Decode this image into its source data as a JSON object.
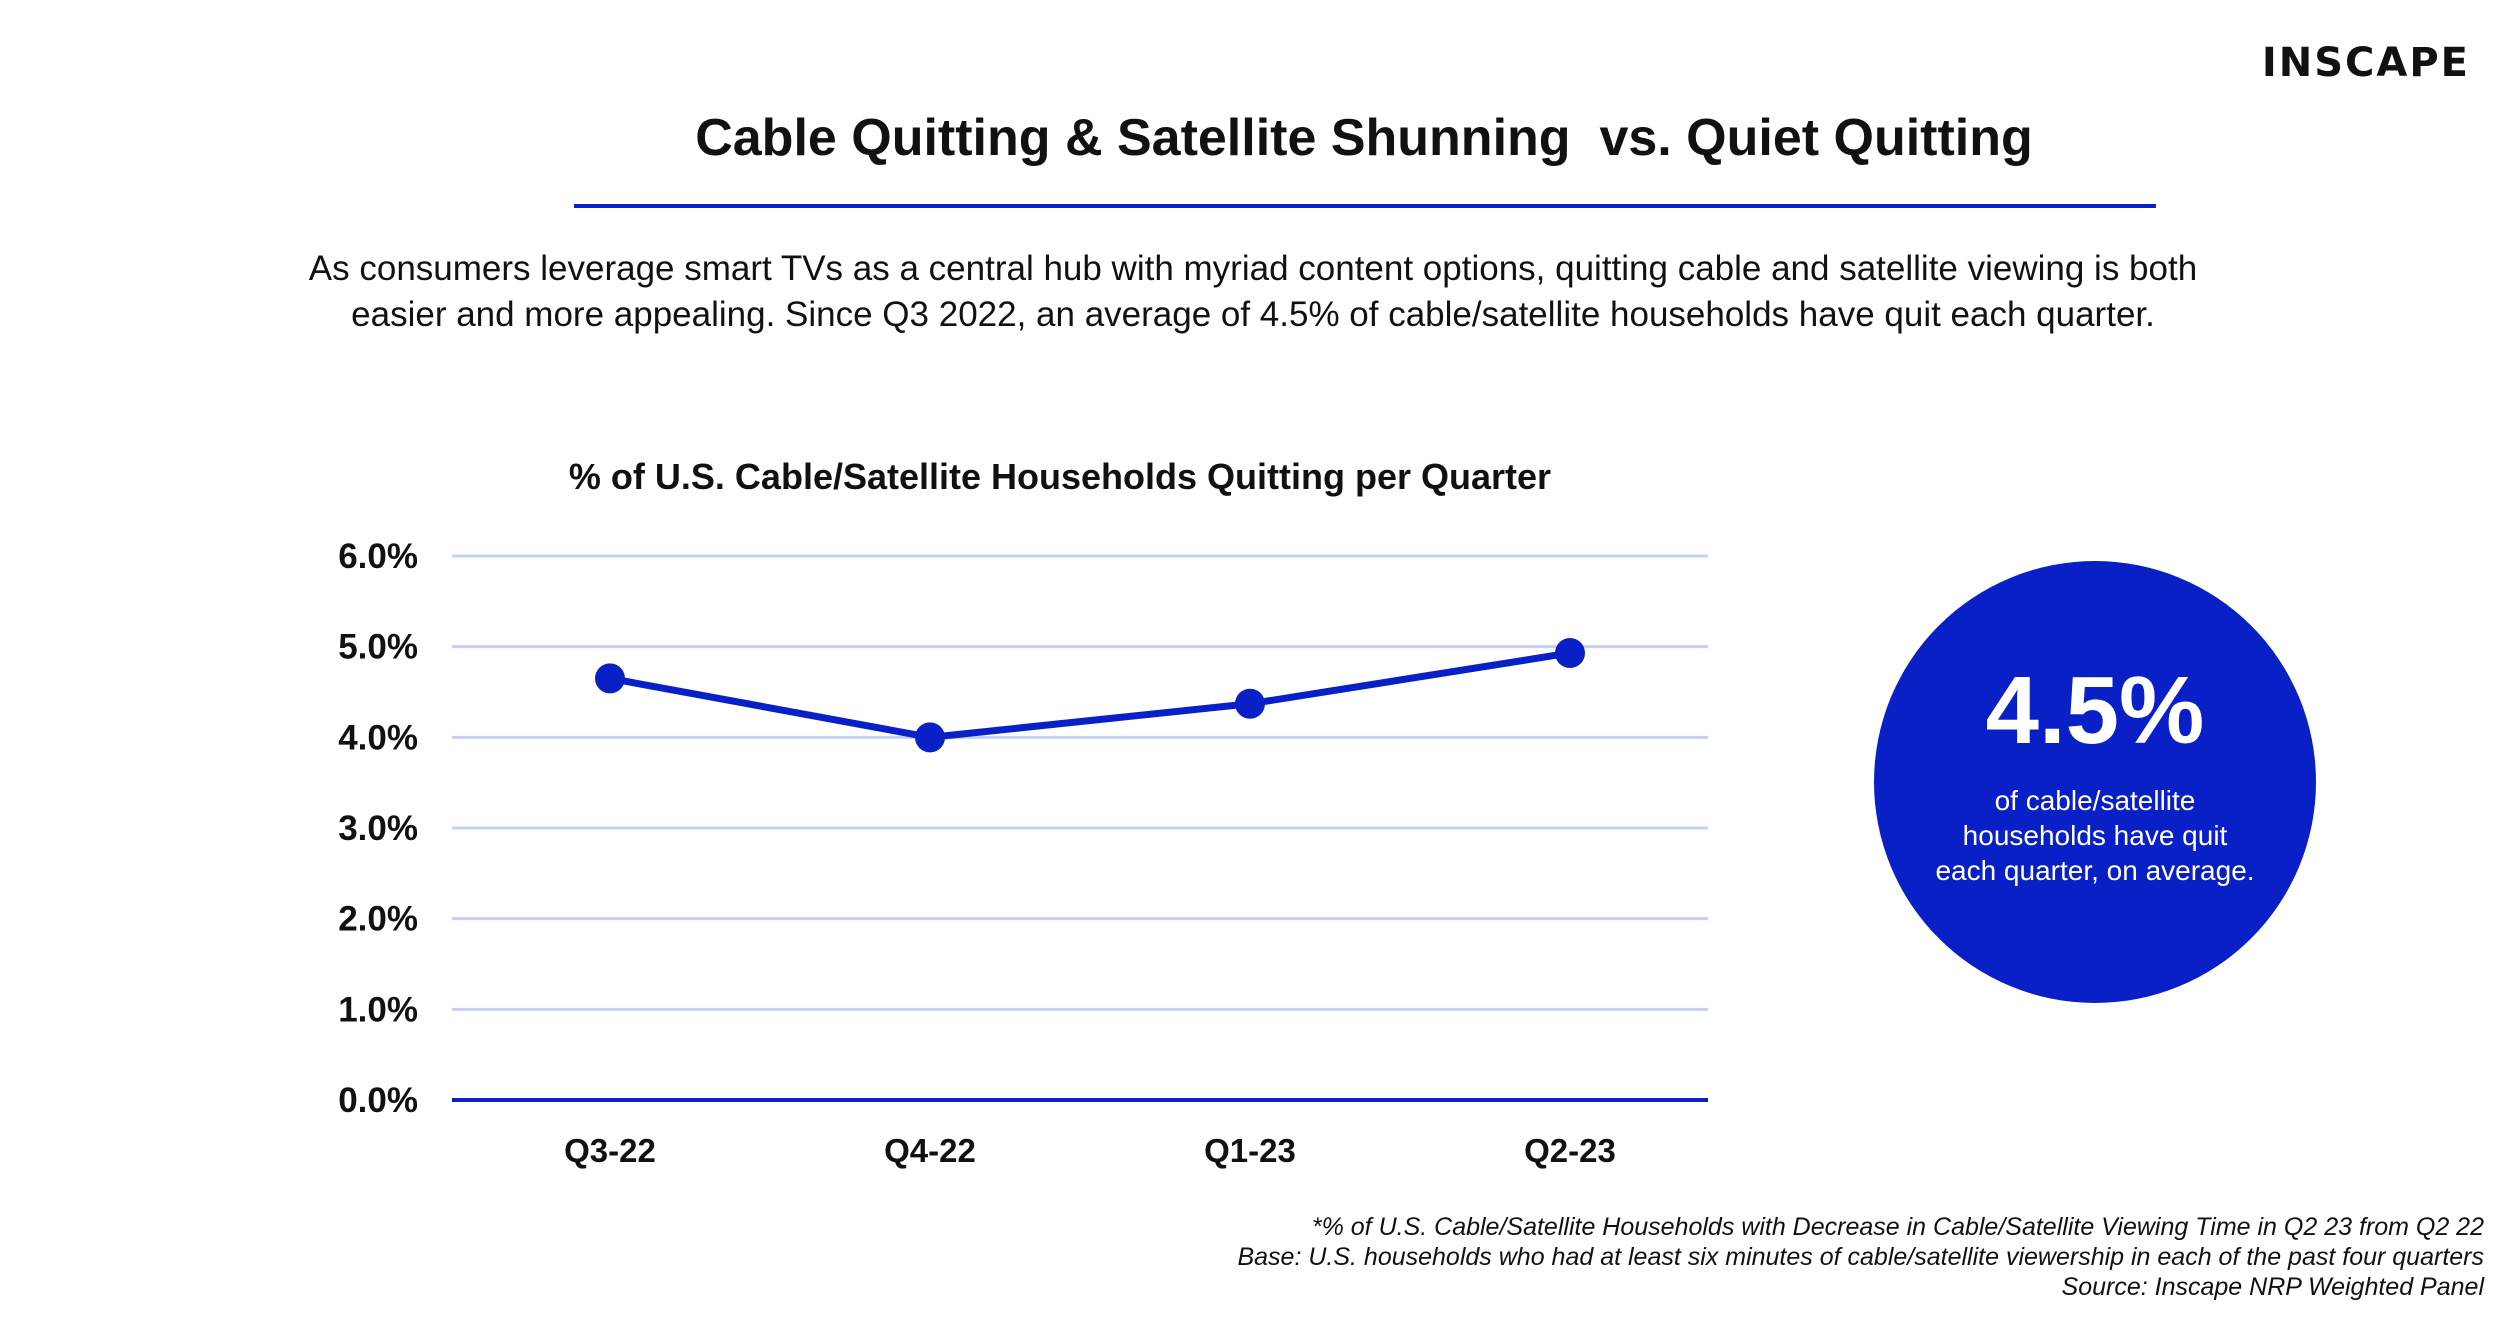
{
  "brand": {
    "logo_text": "INSCAPE"
  },
  "header": {
    "title": "Cable Quitting & Satellite Shunning  vs. Quiet Quitting",
    "subtitle": "As consumers leverage smart TVs as a central hub with myriad content options, quitting cable and satellite viewing is both easier and more appealing. Since Q3 2022, an average of 4.5% of cable/satellite households have quit each quarter."
  },
  "callout": {
    "value": "4.5%",
    "text": "of cable/satellite households have quit each quarter, on average."
  },
  "footnotes": [
    "*% of U.S. Cable/Satellite Households with Decrease in Cable/Satellite Viewing Time in Q2 23 from Q2 22",
    "Base: U.S. households who had at least six minutes of cable/satellite viewership in each of the past four quarters",
    "Source: Inscape NRP Weighted Panel"
  ],
  "colors": {
    "accent": "#0a20c7",
    "gridline": "#c9cff0",
    "text": "#111111"
  },
  "chart_data": {
    "type": "line",
    "title": "% of U.S. Cable/Satellite Households Quitting per Quarter",
    "xlabel": "",
    "ylabel": "",
    "categories": [
      "Q3-22",
      "Q4-22",
      "Q1-23",
      "Q2-23"
    ],
    "series": [
      {
        "values": [
          4.65,
          4.0,
          4.37,
          4.93
        ]
      }
    ],
    "ylim": [
      0,
      6
    ],
    "yticks": [
      0,
      1,
      2,
      3,
      4,
      5,
      6
    ],
    "ytick_labels": [
      "0.0%",
      "1.0%",
      "2.0%",
      "3.0%",
      "4.0%",
      "5.0%",
      "6.0%"
    ],
    "grid": true,
    "legend": "none"
  }
}
